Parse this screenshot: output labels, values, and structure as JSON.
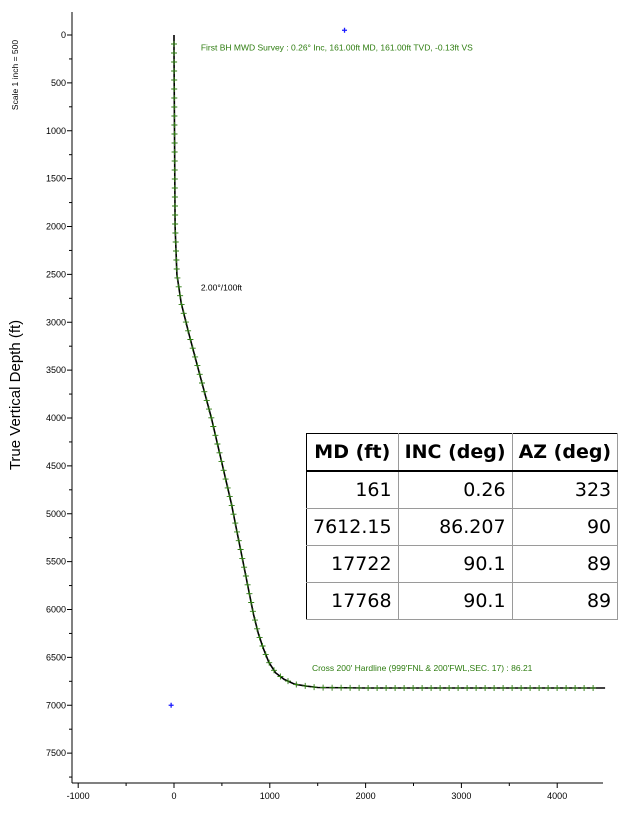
{
  "scale_label": "Scale 1 inch = 500",
  "chart_data": {
    "type": "line",
    "ylabel": "True Vertical Depth (ft)",
    "xlabel": "",
    "xlim": [
      -1050,
      4500
    ],
    "ylim": [
      7800,
      -200
    ],
    "x_ticks": [
      -1000,
      0,
      1000,
      2000,
      3000,
      4000
    ],
    "y_ticks": [
      0,
      500,
      1000,
      1500,
      2000,
      2500,
      3000,
      3500,
      4000,
      4500,
      5000,
      5500,
      6000,
      6500,
      7000,
      7500
    ],
    "grid": false,
    "series": [
      {
        "color": "#000000",
        "marker_color": "#2e7d10",
        "x": [
          0,
          0,
          2,
          5,
          8,
          12,
          30,
          75,
          150,
          230,
          310,
          390,
          460,
          530,
          600,
          660,
          720,
          780,
          830,
          880,
          930,
          990,
          1060,
          1150,
          1260,
          1380,
          1500,
          2000,
          2500,
          3000,
          3500,
          4000,
          4500
        ],
        "y": [
          0,
          161,
          500,
          1000,
          1500,
          2000,
          2500,
          2800,
          3100,
          3400,
          3700,
          4000,
          4300,
          4600,
          4900,
          5200,
          5500,
          5800,
          6050,
          6250,
          6400,
          6550,
          6660,
          6730,
          6780,
          6800,
          6815,
          6820,
          6820,
          6820,
          6820,
          6820,
          6820
        ]
      }
    ],
    "points": [
      {
        "x": 1780,
        "y": -50,
        "color": "#1a1aff"
      },
      {
        "x": -30,
        "y": 7000,
        "color": "#1a1aff"
      }
    ],
    "annotations": [
      {
        "text": "First BH MWD Survey : 0.26° Inc, 161.00ft MD, 161.00ft TVD, -0.13ft VS",
        "x": 280,
        "y": 160,
        "color": "#2e7d10"
      },
      {
        "text": "2.00°/100ft",
        "x": 280,
        "y": 2670,
        "color": "#000000"
      },
      {
        "text": "Cross 200' Hardline (999'FNL & 200'FWL,SEC. 17) : 86.21",
        "x": 1440,
        "y": 6640,
        "color": "#2e7d10"
      }
    ]
  },
  "survey_table": {
    "headers": [
      "MD (ft)",
      "INC (deg)",
      "AZ (deg)"
    ],
    "rows": [
      [
        "161",
        "0.26",
        "323"
      ],
      [
        "7612.15",
        "86.207",
        "90"
      ],
      [
        "17722",
        "90.1",
        "89"
      ],
      [
        "17768",
        "90.1",
        "89"
      ]
    ]
  }
}
